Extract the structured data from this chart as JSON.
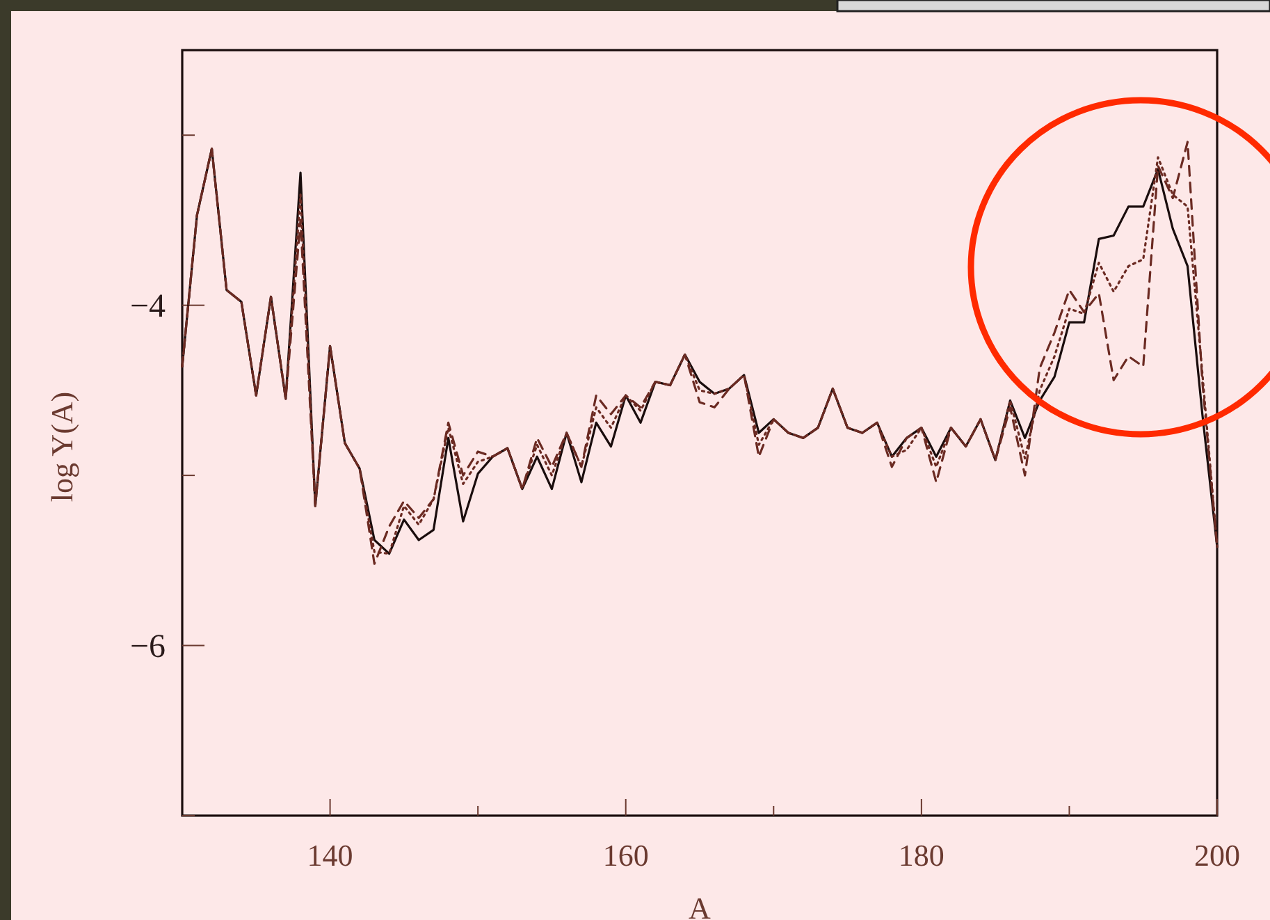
{
  "chart_data": {
    "type": "line",
    "xlabel": "A",
    "ylabel": "log Y(A)",
    "x": [
      130,
      131,
      132,
      133,
      134,
      135,
      136,
      137,
      138,
      139,
      140,
      141,
      142,
      143,
      144,
      145,
      146,
      147,
      148,
      149,
      150,
      151,
      152,
      153,
      154,
      155,
      156,
      157,
      158,
      159,
      160,
      161,
      162,
      163,
      164,
      165,
      166,
      167,
      168,
      169,
      170,
      171,
      172,
      173,
      174,
      175,
      176,
      177,
      178,
      179,
      180,
      181,
      182,
      183,
      184,
      185,
      186,
      187,
      188,
      189,
      190,
      191,
      192,
      193,
      194,
      195,
      196,
      197,
      198,
      199,
      200
    ],
    "series": [
      {
        "color": "#1a0d0d",
        "line_style": "solid",
        "values": [
          -4.36,
          -3.47,
          -3.08,
          -3.91,
          -3.98,
          -4.53,
          -3.95,
          -4.55,
          -3.22,
          -5.18,
          -4.24,
          -4.81,
          -4.96,
          -5.38,
          -5.46,
          -5.26,
          -5.38,
          -5.32,
          -4.78,
          -5.27,
          -4.99,
          -4.89,
          -4.84,
          -5.08,
          -4.89,
          -5.08,
          -4.75,
          -5.04,
          -4.69,
          -4.83,
          -4.53,
          -4.69,
          -4.45,
          -4.47,
          -4.29,
          -4.45,
          -4.52,
          -4.49,
          -4.41,
          -4.75,
          -4.67,
          -4.75,
          -4.78,
          -4.72,
          -4.49,
          -4.72,
          -4.75,
          -4.69,
          -4.89,
          -4.78,
          -4.72,
          -4.89,
          -4.72,
          -4.83,
          -4.67,
          -4.91,
          -4.56,
          -4.78,
          -4.56,
          -4.42,
          -4.1,
          -4.1,
          -3.61,
          -3.59,
          -3.42,
          -3.42,
          -3.2,
          -3.55,
          -3.77,
          -4.64,
          -5.42
        ]
      },
      {
        "color": "#6b2a22",
        "line_style": "dotted",
        "values": [
          -4.36,
          -3.47,
          -3.08,
          -3.91,
          -3.98,
          -4.53,
          -3.95,
          -4.55,
          -3.35,
          -5.18,
          -4.24,
          -4.81,
          -4.96,
          -5.45,
          -5.46,
          -5.18,
          -5.29,
          -5.14,
          -4.72,
          -5.05,
          -4.92,
          -4.89,
          -4.84,
          -5.08,
          -4.82,
          -5.0,
          -4.75,
          -4.95,
          -4.6,
          -4.72,
          -4.53,
          -4.62,
          -4.45,
          -4.47,
          -4.29,
          -4.5,
          -4.52,
          -4.49,
          -4.41,
          -4.82,
          -4.67,
          -4.75,
          -4.78,
          -4.72,
          -4.49,
          -4.72,
          -4.75,
          -4.69,
          -4.89,
          -4.85,
          -4.72,
          -4.95,
          -4.72,
          -4.83,
          -4.67,
          -4.91,
          -4.56,
          -4.9,
          -4.5,
          -4.3,
          -4.02,
          -4.05,
          -3.75,
          -3.92,
          -3.77,
          -3.73,
          -3.13,
          -3.35,
          -3.42,
          -4.4,
          -5.42
        ]
      },
      {
        "color": "#6b2a22",
        "line_style": "dashed",
        "values": [
          -4.36,
          -3.47,
          -3.08,
          -3.91,
          -3.98,
          -4.53,
          -3.95,
          -4.55,
          -3.5,
          -5.18,
          -4.24,
          -4.81,
          -4.96,
          -5.52,
          -5.3,
          -5.15,
          -5.25,
          -5.14,
          -4.69,
          -5.0,
          -4.86,
          -4.89,
          -4.84,
          -5.08,
          -4.78,
          -4.95,
          -4.75,
          -4.95,
          -4.53,
          -4.64,
          -4.53,
          -4.6,
          -4.45,
          -4.47,
          -4.29,
          -4.57,
          -4.6,
          -4.49,
          -4.41,
          -4.89,
          -4.67,
          -4.75,
          -4.78,
          -4.72,
          -4.49,
          -4.72,
          -4.75,
          -4.69,
          -4.95,
          -4.78,
          -4.72,
          -5.04,
          -4.72,
          -4.83,
          -4.67,
          -4.91,
          -4.6,
          -5.0,
          -4.37,
          -4.16,
          -3.91,
          -4.04,
          -3.93,
          -4.44,
          -4.3,
          -4.36,
          -3.18,
          -3.37,
          -3.04,
          -4.45,
          -5.42
        ]
      }
    ],
    "xlim": [
      130,
      200
    ],
    "xticks": [
      140,
      {
        "value": 150,
        "label": null
      },
      160,
      {
        "value": 170,
        "label": null
      },
      180,
      {
        "value": 190,
        "label": null
      },
      200
    ],
    "ylim": [
      -7,
      -2.5
    ],
    "yticks": [
      {
        "value": -7,
        "label": null
      },
      {
        "value": -6,
        "label": "−6"
      },
      {
        "value": -5,
        "label": null
      },
      {
        "value": -4,
        "label": "−4"
      },
      {
        "value": -3,
        "label": null
      }
    ],
    "grid": false,
    "marker": "none"
  }
}
